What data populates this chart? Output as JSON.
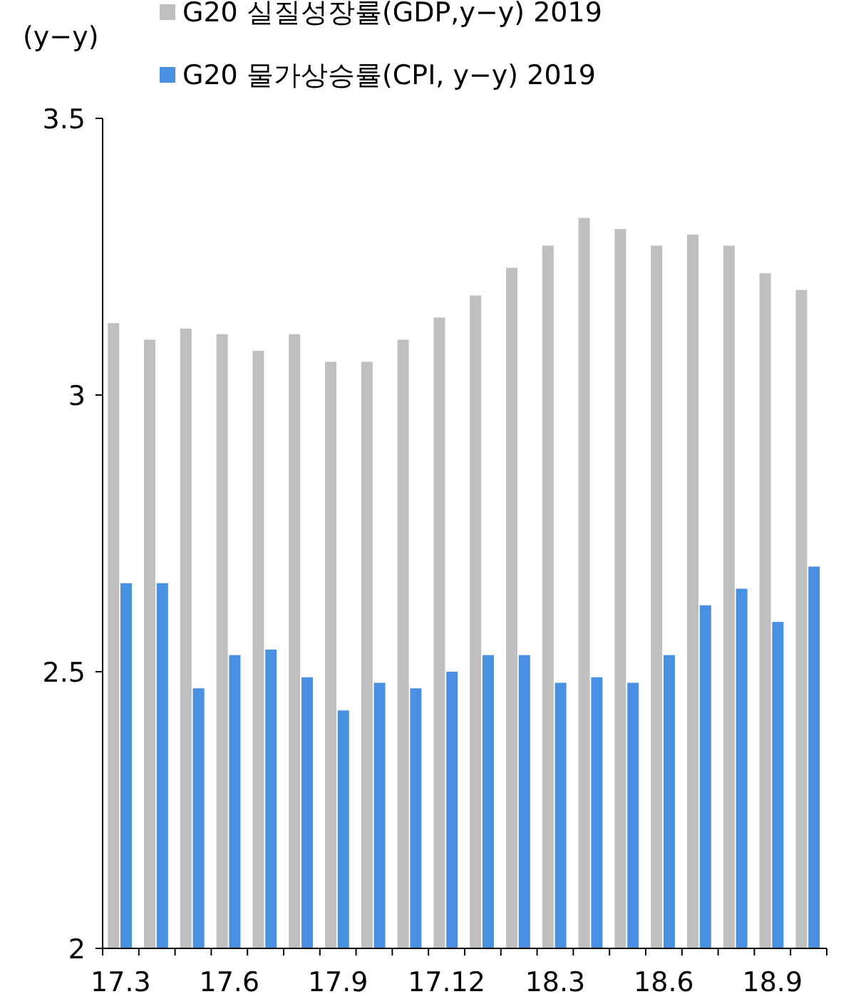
{
  "chart_data": {
    "type": "bar",
    "ylabel": "(y−y)",
    "legend": "top left",
    "categories": [
      "17.3",
      null,
      null,
      "17.6",
      null,
      null,
      "17.9",
      null,
      null,
      "17.12",
      null,
      null,
      "18.3",
      null,
      null,
      "18.6",
      null,
      null,
      "18.9",
      null
    ],
    "series": [
      {
        "name": "G20 실질성장률(GDP,y−y) 2019",
        "color": "#bfbfbf",
        "values": [
          3.13,
          3.1,
          3.12,
          3.11,
          3.08,
          3.11,
          3.06,
          3.06,
          3.1,
          3.14,
          3.18,
          3.23,
          3.27,
          3.32,
          3.3,
          3.27,
          3.29,
          3.27,
          3.22,
          3.19
        ]
      },
      {
        "name": "G20 물가상승률(CPI, y−y) 2019",
        "color": "#4a90e2",
        "values": [
          2.66,
          2.66,
          2.47,
          2.53,
          2.54,
          2.49,
          2.43,
          2.48,
          2.47,
          2.5,
          2.53,
          2.53,
          2.48,
          2.49,
          2.48,
          2.53,
          2.62,
          2.65,
          2.59,
          2.69
        ]
      }
    ],
    "ylim": [
      2,
      3.5
    ],
    "yticks": [
      2,
      2.5,
      3,
      3.5
    ],
    "grid": false
  }
}
